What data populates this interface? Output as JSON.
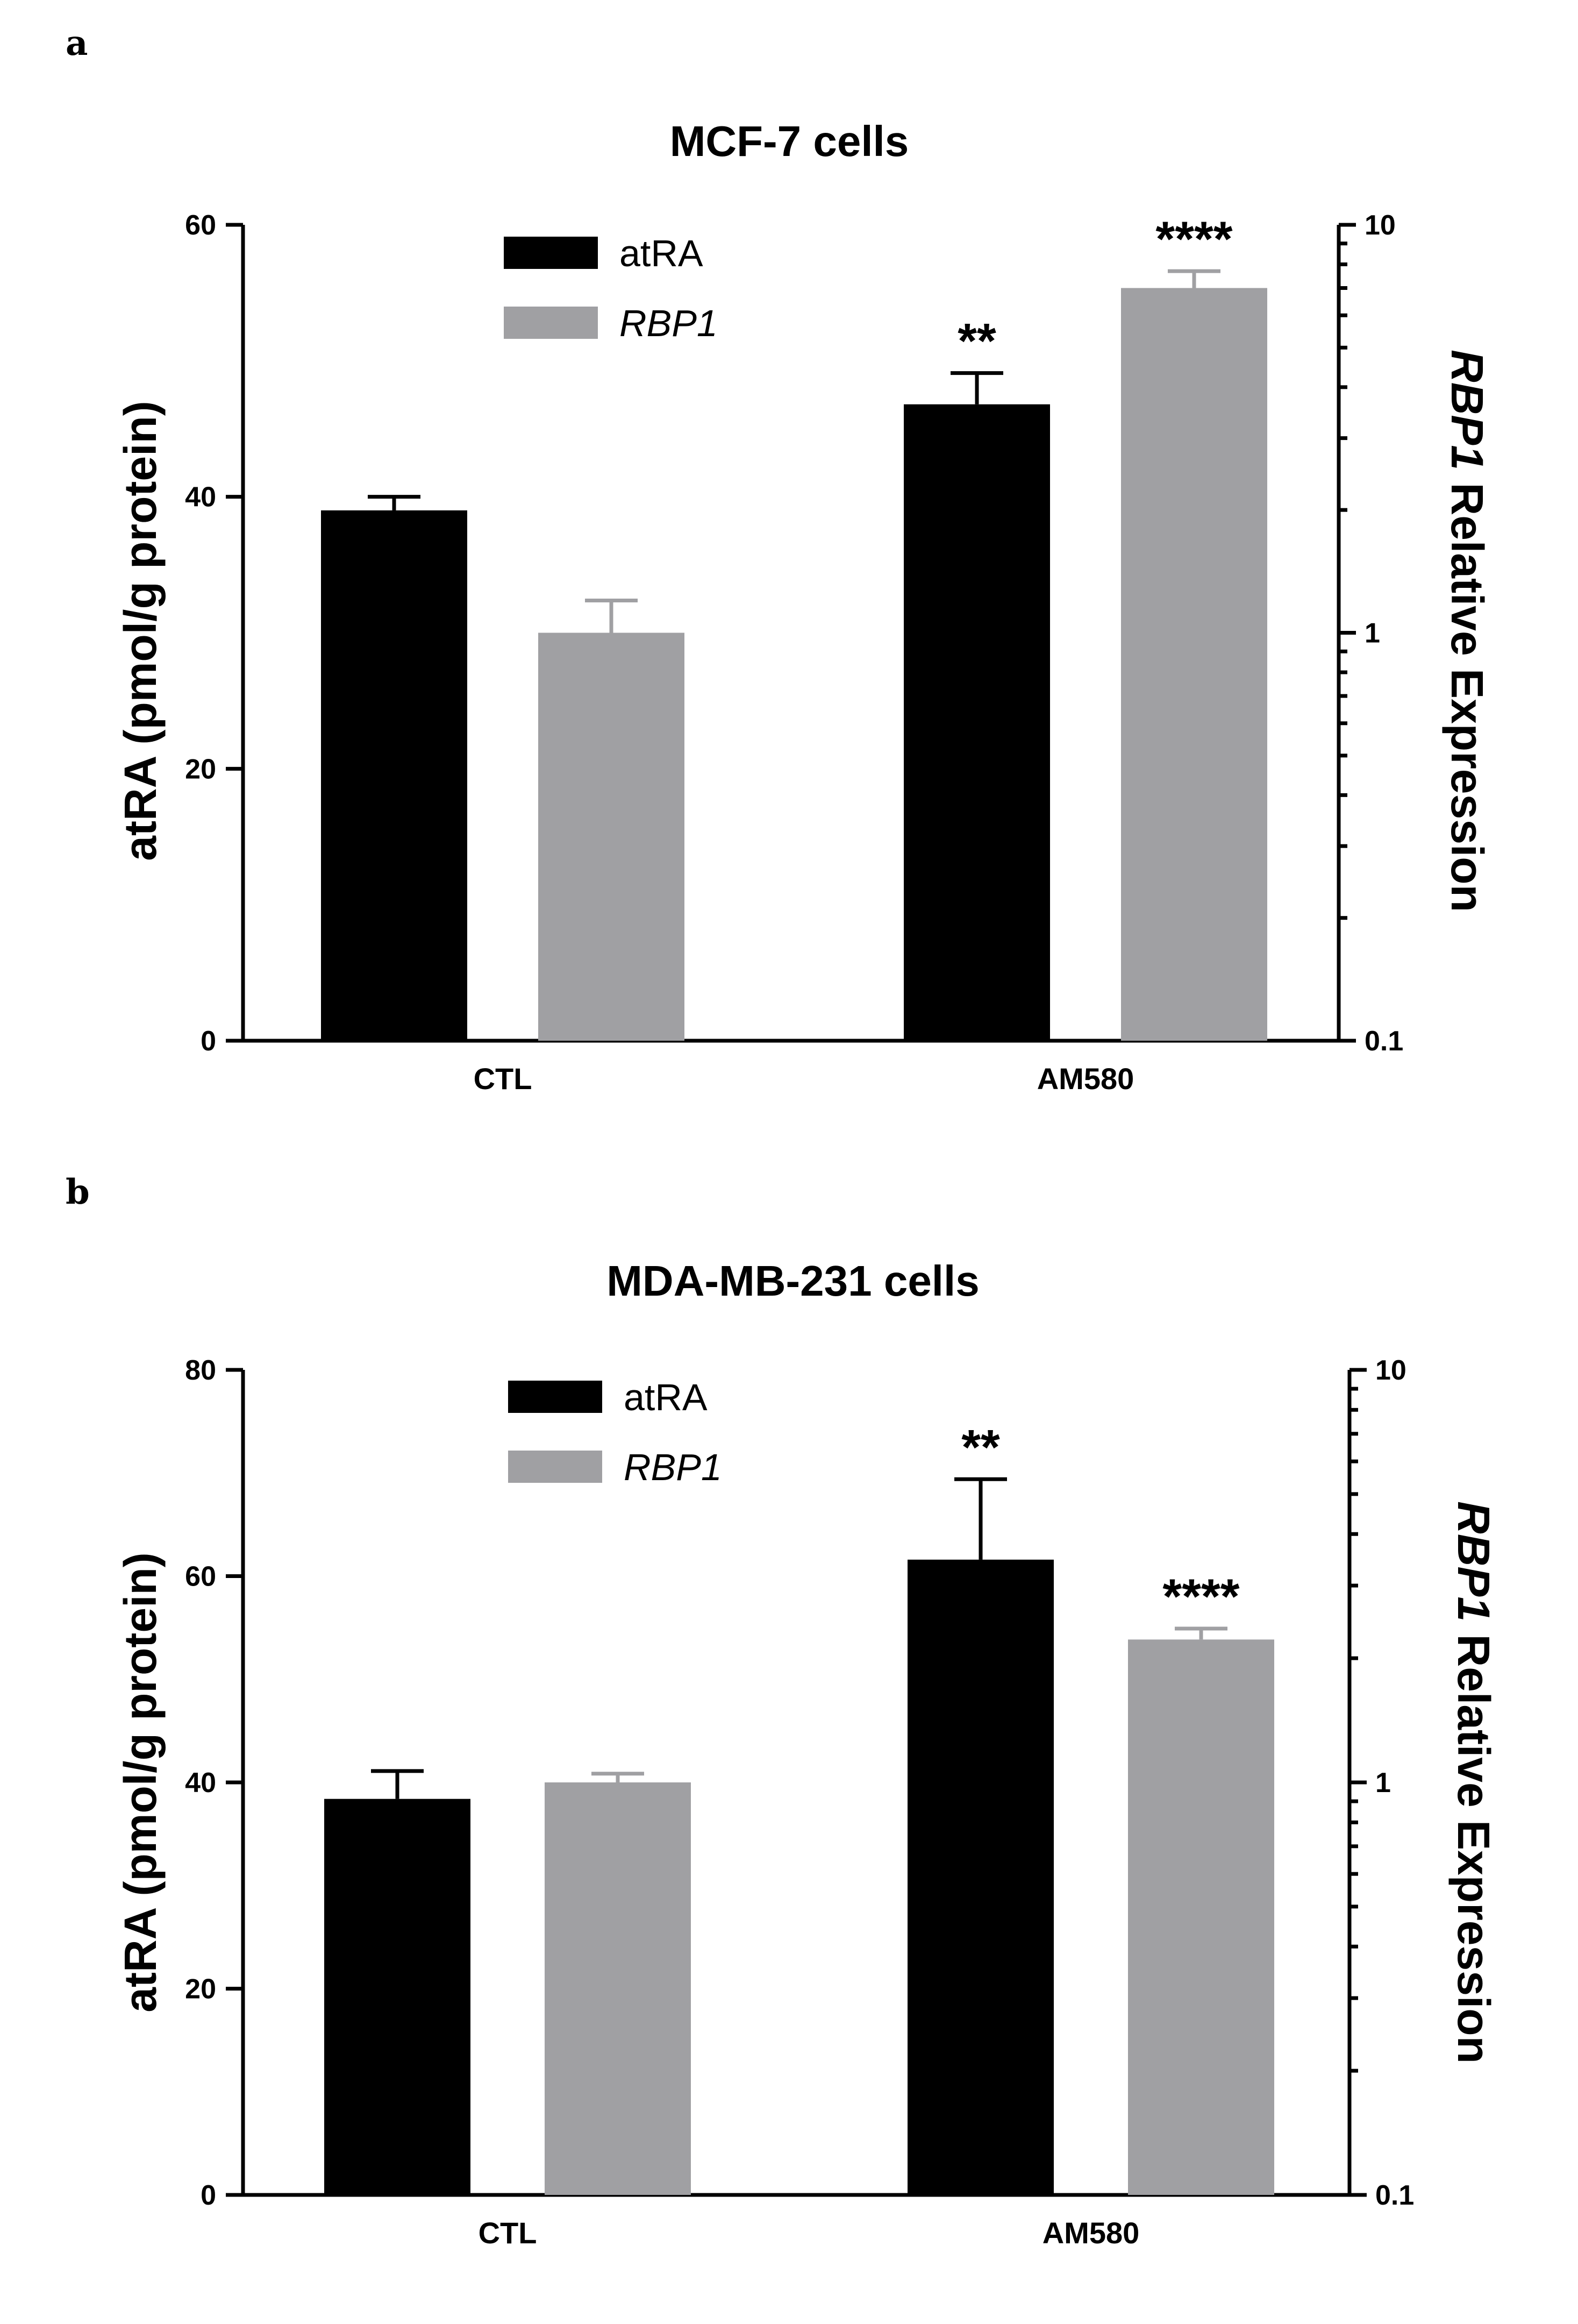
{
  "chart_data": [
    {
      "panel": "a",
      "type": "bar",
      "title": "MCF-7 cells",
      "categories": [
        "CTL",
        "AM580"
      ],
      "y_left": {
        "label": "atRA (pmol/g protein)",
        "scale": "linear",
        "ylim": [
          0,
          60
        ],
        "ticks": [
          0,
          20,
          40,
          60
        ],
        "tick_labels": [
          "0",
          "20",
          "40",
          "60"
        ]
      },
      "y_right": {
        "label_italic": "RBP1",
        "label_rest": " Relative Expression",
        "scale": "log",
        "ylim": [
          0.1,
          10
        ],
        "ticks": [
          0.1,
          1,
          10
        ],
        "tick_labels": [
          "0.1",
          "1",
          "10"
        ]
      },
      "legend": {
        "position": "top-left",
        "entries": [
          "atRA",
          "RBP1"
        ]
      },
      "series": [
        {
          "name": "atRA",
          "axis": "left",
          "color": "#000000",
          "values": [
            39,
            46.8
          ],
          "errors": [
            1,
            2.3
          ],
          "significance": [
            "",
            "**"
          ]
        },
        {
          "name": "RBP1",
          "axis": "right",
          "color": "#a0a0a3",
          "values": [
            1.0,
            7.0
          ],
          "errors": [
            0.2,
            0.7
          ],
          "significance": [
            "",
            "****"
          ]
        }
      ]
    },
    {
      "panel": "b",
      "type": "bar",
      "title": "MDA-MB-231 cells",
      "categories": [
        "CTL",
        "AM580"
      ],
      "y_left": {
        "label": "atRA (pmol/g protein)",
        "scale": "linear",
        "ylim": [
          0,
          80
        ],
        "ticks": [
          0,
          20,
          40,
          60,
          80
        ],
        "tick_labels": [
          "0",
          "20",
          "40",
          "60",
          "80"
        ]
      },
      "y_right": {
        "label_italic": "RBP1",
        "label_rest": " Relative Expression",
        "scale": "log",
        "ylim": [
          0.1,
          10
        ],
        "ticks": [
          0.1,
          1,
          10
        ],
        "tick_labels": [
          "0.1",
          "1",
          "10"
        ]
      },
      "legend": {
        "position": "top-left",
        "entries": [
          "atRA",
          "RBP1"
        ]
      },
      "series": [
        {
          "name": "atRA",
          "axis": "left",
          "color": "#000000",
          "values": [
            38.4,
            61.6
          ],
          "errors": [
            2.7,
            7.8
          ],
          "significance": [
            "",
            "**"
          ]
        },
        {
          "name": "RBP1",
          "axis": "right",
          "color": "#a0a0a3",
          "values": [
            1.0,
            2.22
          ],
          "errors": [
            0.05,
            0.14
          ],
          "significance": [
            "",
            "****"
          ]
        }
      ]
    }
  ]
}
